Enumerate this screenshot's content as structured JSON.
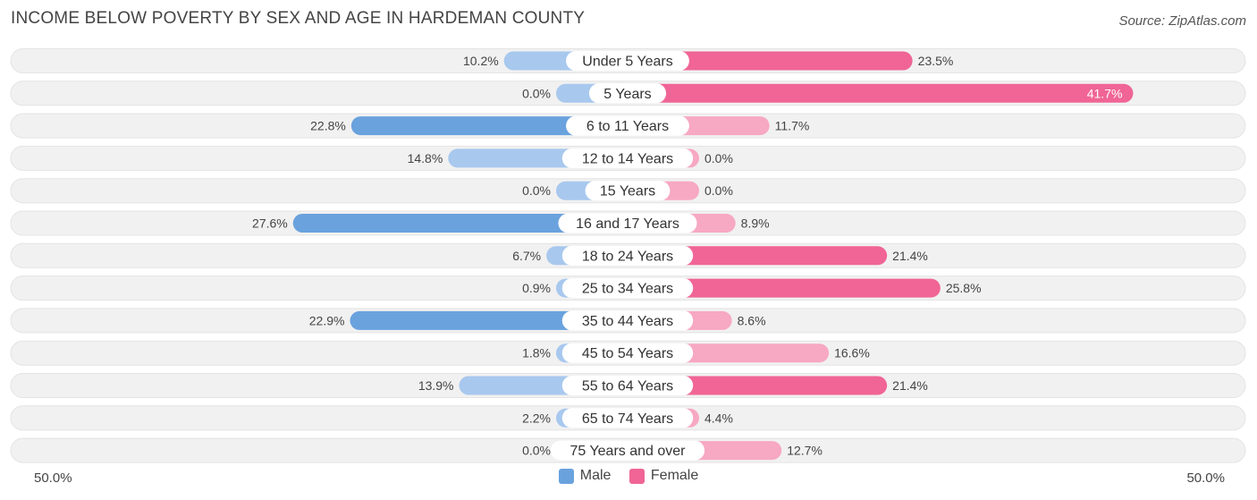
{
  "header": {
    "title": "INCOME BELOW POVERTY BY SEX AND AGE IN HARDEMAN COUNTY",
    "source": "Source: ZipAtlas.com"
  },
  "legend": {
    "male_label": "Male",
    "female_label": "Female"
  },
  "axis": {
    "left_label": "50.0%",
    "right_label": "50.0%"
  },
  "colors": {
    "male_dark": "#6aa2de",
    "male_light": "#a8c8ee",
    "female_dark": "#f06595",
    "female_light": "#f7a8c2",
    "row_bg": "#f1f1f1"
  },
  "chart_data": {
    "type": "bar",
    "orientation": "horizontal-diverging",
    "title": "INCOME BELOW POVERTY BY SEX AND AGE IN HARDEMAN COUNTY",
    "xlim": [
      -50,
      50
    ],
    "unit": "%",
    "categories": [
      "Under 5 Years",
      "5 Years",
      "6 to 11 Years",
      "12 to 14 Years",
      "15 Years",
      "16 and 17 Years",
      "18 to 24 Years",
      "25 to 34 Years",
      "35 to 44 Years",
      "45 to 54 Years",
      "55 to 64 Years",
      "65 to 74 Years",
      "75 Years and over"
    ],
    "series": [
      {
        "name": "Male",
        "values": [
          10.2,
          0.0,
          22.8,
          14.8,
          0.0,
          27.6,
          6.7,
          0.9,
          22.9,
          1.8,
          13.9,
          2.2,
          0.0
        ]
      },
      {
        "name": "Female",
        "values": [
          23.5,
          41.7,
          11.7,
          0.0,
          0.0,
          8.9,
          21.4,
          25.8,
          8.6,
          16.6,
          21.4,
          4.4,
          12.7
        ]
      }
    ],
    "legend_position": "bottom-center"
  }
}
